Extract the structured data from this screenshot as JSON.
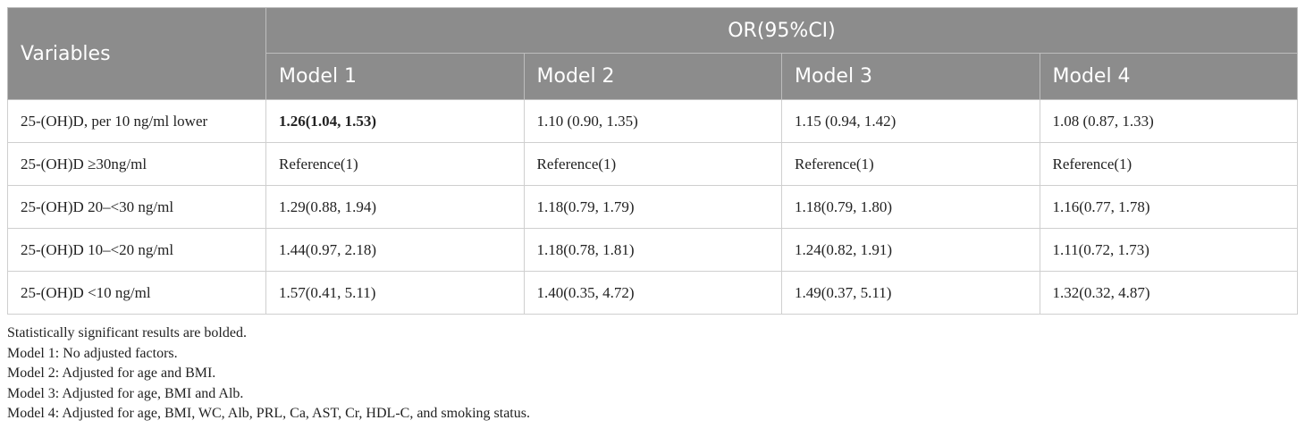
{
  "table": {
    "header": {
      "variables": "Variables",
      "group": "OR(95%CI)",
      "models": [
        "Model 1",
        "Model 2",
        "Model 3",
        "Model 4"
      ]
    },
    "rows": [
      [
        "25-(OH)D, per 10 ng/ml lower",
        "1.26(1.04, 1.53)",
        "1.10 (0.90, 1.35)",
        "1.15 (0.94, 1.42)",
        "1.08 (0.87, 1.33)"
      ],
      [
        "25-(OH)D ≥30ng/ml",
        "Reference(1)",
        "Reference(1)",
        "Reference(1)",
        "Reference(1)"
      ],
      [
        "25-(OH)D 20–<30 ng/ml",
        "1.29(0.88, 1.94)",
        "1.18(0.79, 1.79)",
        "1.18(0.79, 1.80)",
        "1.16(0.77, 1.78)"
      ],
      [
        "25-(OH)D 10–<20 ng/ml",
        "1.44(0.97, 2.18)",
        "1.18(0.78, 1.81)",
        "1.24(0.82, 1.91)",
        "1.11(0.72, 1.73)"
      ],
      [
        "25-(OH)D <10 ng/ml",
        "1.57(0.41, 5.11)",
        "1.40(0.35, 4.72)",
        "1.49(0.37, 5.11)",
        "1.32(0.32, 4.87)"
      ]
    ],
    "bold_cells": [
      [
        0,
        1
      ]
    ]
  },
  "notes": [
    "Statistically significant results are bolded.",
    "Model 1: No adjusted factors.",
    "Model 2: Adjusted for age and BMI.",
    "Model 3: Adjusted for age, BMI and Alb.",
    "Model 4: Adjusted for age, BMI, WC, Alb, PRL, Ca, AST, Cr, HDL-C, and smoking status."
  ]
}
